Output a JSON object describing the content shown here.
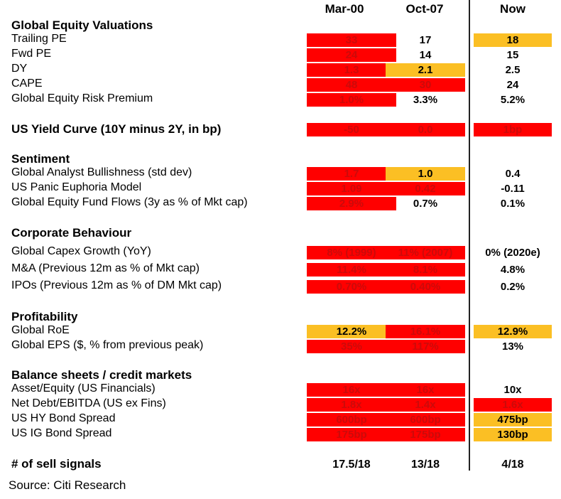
{
  "chart_data": {
    "type": "table",
    "columns": [
      "Mar-00",
      "Oct-07",
      "Now"
    ],
    "sections": [
      {
        "title": "Global Equity Valuations",
        "rows": [
          {
            "label": "Trailing PE",
            "values": [
              "33",
              "17",
              "18"
            ],
            "colors": [
              "red",
              "none",
              "yellow"
            ]
          },
          {
            "label": "Fwd PE",
            "values": [
              "24",
              "14",
              "15"
            ],
            "colors": [
              "red",
              "none",
              "none"
            ]
          },
          {
            "label": "DY",
            "values": [
              "1.3",
              "2.1",
              "2.5"
            ],
            "colors": [
              "red",
              "yellow",
              "none"
            ]
          },
          {
            "label": "CAPE",
            "values": [
              "48",
              "30",
              "24"
            ],
            "colors": [
              "red",
              "red",
              "none"
            ]
          },
          {
            "label": "Global Equity Risk Premium",
            "values": [
              "1.0%",
              "3.3%",
              "5.2%"
            ],
            "colors": [
              "red",
              "none",
              "none"
            ]
          }
        ]
      },
      {
        "title": "US Yield Curve (10Y minus 2Y, in bp)",
        "title_row_values": [
          "-50",
          "0.0",
          "1bp"
        ],
        "title_row_colors": [
          "red",
          "red",
          "red"
        ],
        "rows": []
      },
      {
        "title": "Sentiment",
        "rows": [
          {
            "label": "Global Analyst Bullishness (std dev)",
            "values": [
              "1.7",
              "1.0",
              "0.4"
            ],
            "colors": [
              "red",
              "yellow",
              "none"
            ]
          },
          {
            "label": "US Panic Euphoria Model",
            "values": [
              "1.09",
              "0.42",
              "-0.11"
            ],
            "colors": [
              "red",
              "red",
              "none"
            ]
          },
          {
            "label": "Global Equity Fund Flows (3y as % of Mkt cap)",
            "values": [
              "2.9%",
              "0.7%",
              "0.1%"
            ],
            "colors": [
              "red",
              "none",
              "none"
            ]
          }
        ]
      },
      {
        "title": "Corporate Behaviour",
        "rows": [
          {
            "label": "Global Capex Growth (YoY)",
            "values": [
              "8% (1999)",
              "11% (2007)",
              "0% (2020e)"
            ],
            "colors": [
              "red",
              "red",
              "none"
            ]
          },
          {
            "label": "M&A (Previous 12m as % of Mkt cap)",
            "values": [
              "11.4%",
              "8.1%",
              "4.8%"
            ],
            "colors": [
              "red",
              "red",
              "none"
            ]
          },
          {
            "label": "IPOs (Previous 12m as % of DM Mkt cap)",
            "values": [
              "0.70%",
              "0.40%",
              "0.2%"
            ],
            "colors": [
              "red",
              "red",
              "none"
            ]
          }
        ]
      },
      {
        "title": "Profitability",
        "rows": [
          {
            "label": "Global RoE",
            "values": [
              "12.2%",
              "16.1%",
              "12.9%"
            ],
            "colors": [
              "yellow",
              "red",
              "yellow"
            ]
          },
          {
            "label": "Global EPS  ($, % from previous peak)",
            "values": [
              "35%",
              "117%",
              "13%"
            ],
            "colors": [
              "red",
              "red",
              "none"
            ]
          }
        ]
      },
      {
        "title": "Balance sheets / credit markets",
        "rows": [
          {
            "label": "Asset/Equity (US Financials)",
            "values": [
              "16x",
              "16x",
              "10x"
            ],
            "colors": [
              "red",
              "red",
              "none"
            ]
          },
          {
            "label": "Net Debt/EBITDA (US ex Fins)",
            "values": [
              "1.8x",
              "1.4x",
              "1.6x"
            ],
            "colors": [
              "red",
              "red",
              "red"
            ]
          },
          {
            "label": "US HY Bond Spread",
            "values": [
              "600bp",
              "600bp",
              "475bp"
            ],
            "colors": [
              "red",
              "red",
              "yellow"
            ]
          },
          {
            "label": "US IG Bond Spread",
            "values": [
              "175bp",
              "175bp",
              "130bp"
            ],
            "colors": [
              "red",
              "red",
              "yellow"
            ]
          }
        ]
      }
    ],
    "summary": {
      "label": "# of sell signals",
      "values": [
        "17.5/18",
        "13/18",
        "4/18"
      ]
    },
    "source": "Source: Citi Research"
  },
  "colors": {
    "red": "#ff0000",
    "yellow": "#fbbf24"
  }
}
